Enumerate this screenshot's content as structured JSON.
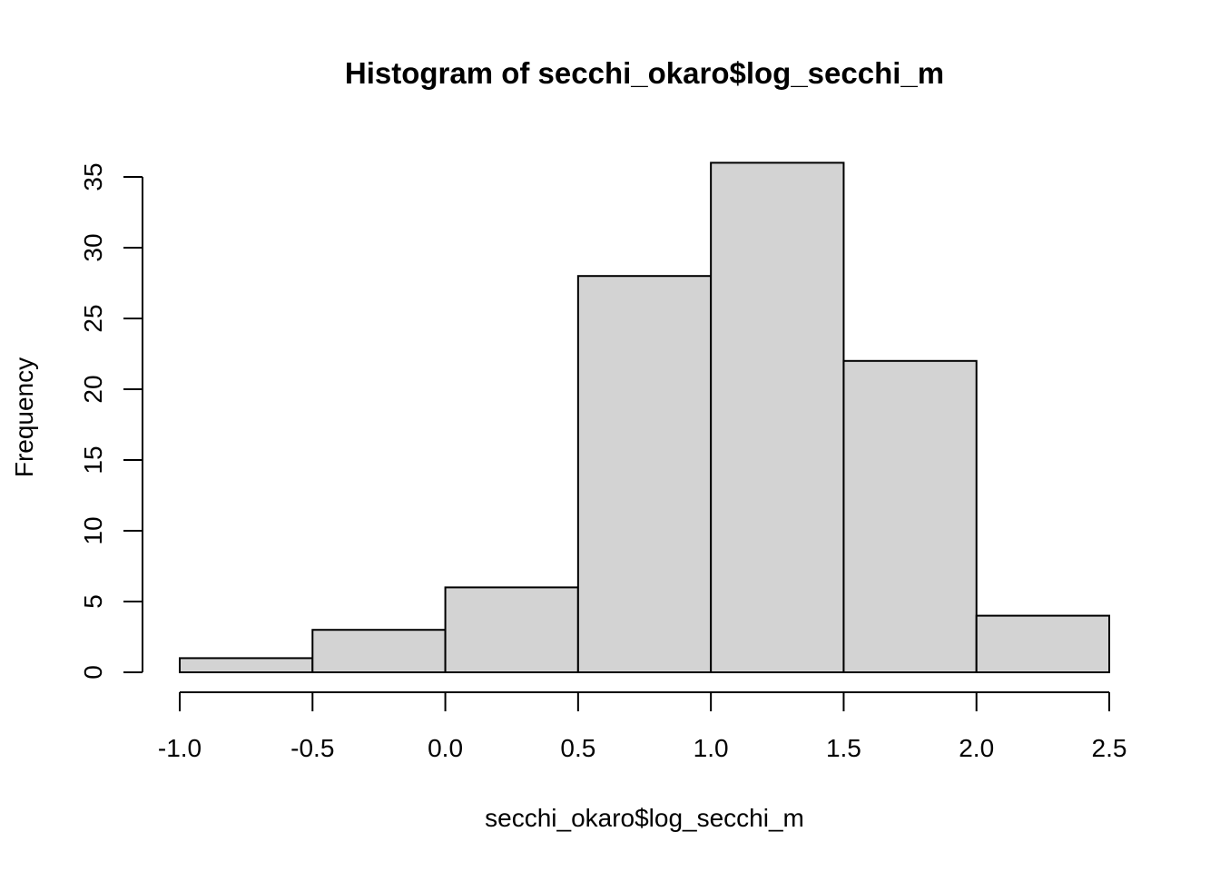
{
  "chart_data": {
    "type": "bar",
    "title": "Histogram of secchi_okaro$log_secchi_m",
    "xlabel": "secchi_okaro$log_secchi_m",
    "ylabel": "Frequency",
    "bins": [
      {
        "from": -1.0,
        "to": -0.5,
        "count": 1
      },
      {
        "from": -0.5,
        "to": 0.0,
        "count": 3
      },
      {
        "from": 0.0,
        "to": 0.5,
        "count": 6
      },
      {
        "from": 0.5,
        "to": 1.0,
        "count": 28
      },
      {
        "from": 1.0,
        "to": 1.5,
        "count": 36
      },
      {
        "from": 1.5,
        "to": 2.0,
        "count": 22
      },
      {
        "from": 2.0,
        "to": 2.5,
        "count": 4
      }
    ],
    "xlim": [
      -1.0,
      2.5
    ],
    "ylim": [
      0,
      36
    ],
    "xticks": [
      "-1.0",
      "-0.5",
      "0.0",
      "0.5",
      "1.0",
      "1.5",
      "2.0",
      "2.5"
    ],
    "yticks": [
      "0",
      "5",
      "10",
      "15",
      "20",
      "25",
      "30",
      "35"
    ],
    "bar_fill": "#d3d3d3",
    "bar_stroke": "#000000",
    "grid": false,
    "legend": "none"
  }
}
